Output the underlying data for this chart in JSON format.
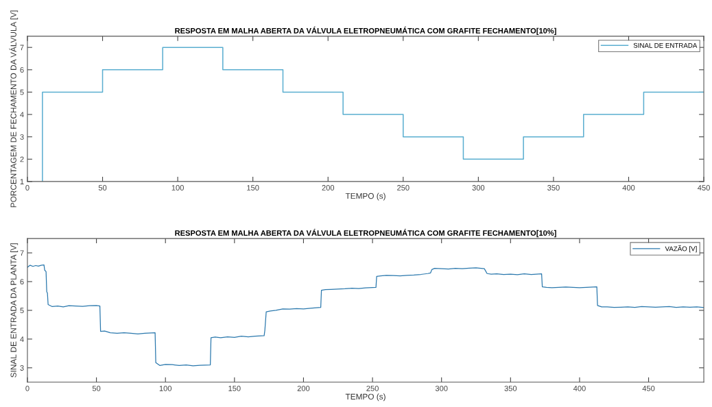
{
  "chart_data": [
    {
      "type": "step",
      "title": "RESPOSTA EM MALHA ABERTA DA VÁLVULA ELETROPNEUMÁTICA COM GRAFITE FECHAMENTO[10%]",
      "xlabel": "TEMPO (s)",
      "ylabel": "PORCENTAGEM DE FECHAMENTO DA VÁLVULA [V]",
      "series": [
        {
          "name": "SINAL DE ENTRADA",
          "color": "#5aaed0",
          "x": [
            10,
            10,
            50,
            90,
            130,
            170,
            210,
            250,
            290,
            330,
            370,
            410,
            450
          ],
          "values": [
            1,
            5,
            6,
            7,
            6,
            5,
            4,
            3,
            2,
            3,
            4,
            5,
            5
          ]
        }
      ],
      "xlim": [
        0,
        450
      ],
      "xticks": [
        0,
        50,
        100,
        150,
        200,
        250,
        300,
        350,
        400,
        450
      ],
      "ylim": [
        1,
        7.5
      ],
      "yticks": [
        1,
        2,
        3,
        4,
        5,
        6,
        7
      ],
      "grid": false,
      "legend": "top right"
    },
    {
      "type": "line",
      "title": "RESPOSTA EM MALHA ABERTA DA VÁLVULA ELETROPNEUMÁTICA COM GRAFITE FECHAMENTO[10%]",
      "xlabel": "TEMPO (s)",
      "ylabel": "SINAL DE ENTRADA DA PLANTA [V]",
      "series": [
        {
          "name": "VAZÃO [V]",
          "color": "#2a78ad",
          "x": [
            0,
            2,
            4,
            6,
            8,
            10,
            12,
            12.5,
            13.5,
            14,
            14.5,
            15,
            18,
            22,
            26,
            30,
            35,
            40,
            45,
            50,
            52.5,
            53,
            56,
            60,
            65,
            70,
            75,
            80,
            85,
            92.5,
            93,
            96,
            100,
            105,
            110,
            115,
            120,
            125,
            132.5,
            133,
            136,
            140,
            145,
            150,
            155,
            160,
            165,
            171.5,
            172,
            173,
            176,
            180,
            185,
            190,
            195,
            200,
            205,
            212.5,
            213,
            216,
            220,
            225,
            230,
            235,
            240,
            245,
            252.5,
            253,
            256,
            260,
            265,
            270,
            275,
            280,
            285,
            290,
            292,
            293,
            295,
            300,
            305,
            310,
            315,
            320,
            325,
            331,
            333,
            336,
            340,
            345,
            350,
            355,
            360,
            365,
            372.5,
            373,
            376,
            380,
            385,
            390,
            395,
            400,
            405,
            412.5,
            413,
            416,
            420,
            425,
            430,
            435,
            440,
            445,
            450,
            455,
            460,
            465,
            470,
            475,
            480,
            485,
            490
          ],
          "values": [
            6.5,
            6.57,
            6.53,
            6.56,
            6.54,
            6.57,
            6.58,
            6.4,
            6.35,
            5.65,
            5.6,
            5.2,
            5.13,
            5.15,
            5.12,
            5.16,
            5.15,
            5.14,
            5.16,
            5.17,
            5.15,
            4.27,
            4.28,
            4.22,
            4.2,
            4.22,
            4.2,
            4.18,
            4.2,
            4.22,
            3.18,
            3.08,
            3.12,
            3.11,
            3.08,
            3.1,
            3.07,
            3.09,
            3.1,
            4.05,
            4.07,
            4.05,
            4.08,
            4.06,
            4.1,
            4.08,
            4.1,
            4.12,
            4.3,
            4.95,
            4.98,
            5.0,
            5.05,
            5.04,
            5.06,
            5.05,
            5.07,
            5.1,
            5.7,
            5.72,
            5.73,
            5.74,
            5.75,
            5.77,
            5.76,
            5.78,
            5.8,
            6.18,
            6.2,
            6.22,
            6.21,
            6.2,
            6.22,
            6.23,
            6.25,
            6.28,
            6.3,
            6.42,
            6.46,
            6.45,
            6.44,
            6.46,
            6.45,
            6.47,
            6.48,
            6.45,
            6.28,
            6.26,
            6.27,
            6.25,
            6.26,
            6.24,
            6.27,
            6.25,
            6.27,
            5.82,
            5.8,
            5.79,
            5.8,
            5.81,
            5.8,
            5.79,
            5.8,
            5.82,
            5.17,
            5.12,
            5.12,
            5.1,
            5.11,
            5.12,
            5.1,
            5.13,
            5.12,
            5.11,
            5.12,
            5.13,
            5.1,
            5.12,
            5.11,
            5.12,
            5.1
          ]
        }
      ],
      "xlim": [
        0,
        490
      ],
      "xticks": [
        0,
        50,
        100,
        150,
        200,
        250,
        300,
        350,
        400,
        450
      ],
      "ylim": [
        2.5,
        7.5
      ],
      "yticks": [
        3,
        4,
        5,
        6,
        7
      ],
      "grid": false,
      "legend": "top right"
    }
  ]
}
